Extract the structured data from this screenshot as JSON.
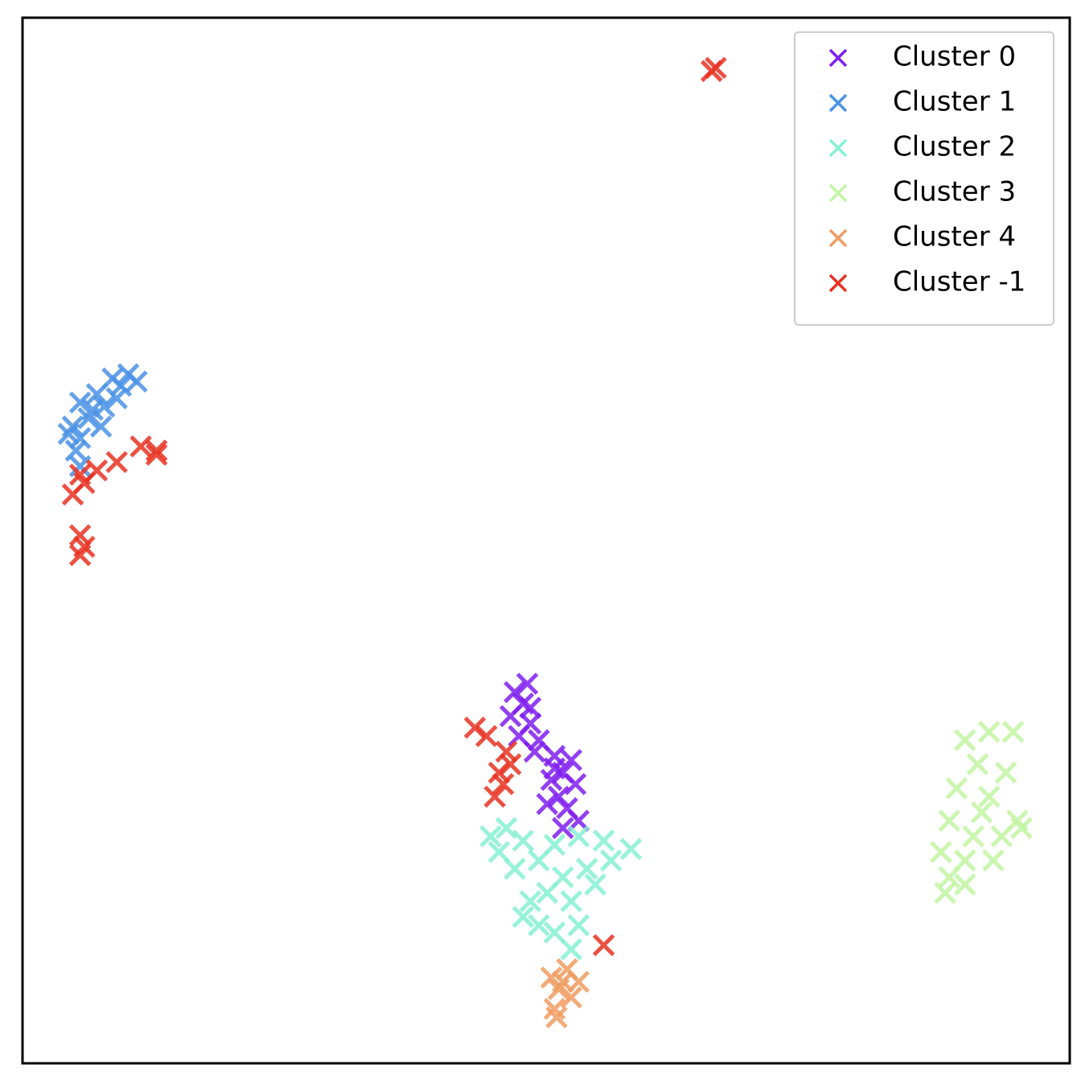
{
  "chart_data": {
    "type": "scatter",
    "marker": "x",
    "legend": "upper right",
    "xlim": [
      0,
      100
    ],
    "ylim": [
      0,
      100
    ],
    "series": [
      {
        "name": "Cluster 0",
        "color": "#7f1ff0",
        "x": [
          47.0,
          48.2,
          47.8,
          46.6,
          48.5,
          47.4,
          49.3,
          48.9,
          50.8,
          52.4,
          51.6,
          50.5,
          52.8,
          51.2,
          52.0,
          53.1,
          51.6,
          50.1,
          50.8,
          48.5
        ],
        "y": [
          35.5,
          36.3,
          34.4,
          33.2,
          32.5,
          31.3,
          30.9,
          29.8,
          29.4,
          29.0,
          27.8,
          27.1,
          26.7,
          25.5,
          24.4,
          23.2,
          22.5,
          24.8,
          28.2,
          34.0
        ]
      },
      {
        "name": "Cluster 1",
        "color": "#4a92e6",
        "x": [
          5.5,
          7.1,
          8.6,
          10.1,
          9.4,
          7.8,
          6.3,
          4.8,
          5.5,
          5.1,
          4.4,
          6.7,
          10.9,
          9.0,
          7.5,
          5.5
        ],
        "y": [
          63.2,
          64.0,
          65.5,
          65.9,
          64.8,
          62.8,
          61.7,
          60.9,
          59.8,
          58.6,
          60.2,
          62.5,
          65.2,
          63.6,
          60.9,
          57.1
        ]
      },
      {
        "name": "Cluster 2",
        "color": "#86f0d2",
        "x": [
          44.7,
          46.2,
          45.5,
          47.8,
          49.3,
          50.8,
          53.1,
          55.5,
          58.1,
          56.2,
          51.6,
          50.1,
          48.5,
          47.8,
          52.4,
          54.7,
          53.1,
          50.8,
          52.4,
          49.3,
          53.9,
          47.0
        ],
        "y": [
          21.7,
          22.5,
          20.2,
          21.3,
          19.4,
          20.9,
          21.7,
          21.3,
          20.5,
          19.4,
          17.8,
          16.3,
          15.5,
          14.0,
          15.5,
          17.1,
          13.2,
          12.5,
          10.9,
          13.2,
          18.6,
          18.6
        ]
      },
      {
        "name": "Cluster 3",
        "color": "#c2f5a2",
        "x": [
          90.0,
          92.3,
          94.6,
          91.2,
          93.9,
          89.2,
          92.3,
          95.0,
          95.4,
          88.5,
          90.8,
          93.5,
          87.7,
          90.0,
          92.7,
          88.5,
          90.0,
          88.1,
          91.6
        ],
        "y": [
          30.9,
          31.7,
          31.7,
          28.6,
          27.8,
          26.3,
          25.5,
          23.2,
          22.5,
          23.2,
          21.7,
          21.7,
          20.2,
          19.4,
          19.4,
          17.8,
          17.1,
          16.3,
          24.0
        ]
      },
      {
        "name": "Cluster 4",
        "color": "#f09c62",
        "x": [
          50.5,
          52.0,
          53.1,
          51.2,
          52.4,
          50.8,
          51.6,
          51.0
        ],
        "y": [
          8.2,
          9.0,
          7.8,
          7.1,
          6.3,
          5.2,
          7.8,
          4.4
        ]
      },
      {
        "name": "Cluster -1",
        "color": "#e83222",
        "x": [
          66.2,
          65.8,
          12.8,
          11.3,
          9.0,
          7.1,
          5.5,
          4.8,
          5.9,
          5.5,
          5.9,
          5.5,
          43.2,
          44.3,
          45.5,
          45.9,
          45.1,
          46.6,
          55.5,
          46.2,
          12.8
        ],
        "y": [
          95.2,
          94.9,
          58.6,
          59.0,
          57.5,
          56.7,
          56.3,
          54.4,
          55.5,
          50.5,
          49.4,
          48.6,
          32.1,
          31.3,
          27.8,
          26.7,
          25.5,
          28.6,
          11.3,
          29.8,
          58.2
        ]
      }
    ]
  }
}
